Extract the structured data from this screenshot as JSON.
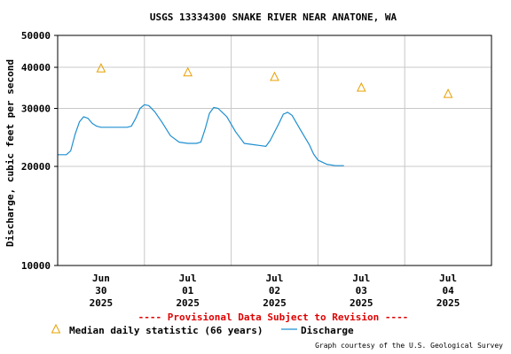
{
  "chart_data": {
    "type": "line",
    "title": "USGS 13334300 SNAKE RIVER NEAR ANATONE, WA",
    "ylabel": "Discharge, cubic feet per second",
    "xlabel": "",
    "y_scale": "log",
    "ylim": [
      10000,
      50000
    ],
    "y_ticks": [
      {
        "value": 10000,
        "label": "10000"
      },
      {
        "value": 20000,
        "label": "20000"
      },
      {
        "value": 30000,
        "label": "30000"
      },
      {
        "value": 40000,
        "label": "40000"
      },
      {
        "value": 50000,
        "label": "50000"
      }
    ],
    "x_range_days": [
      -0.5,
      4.5
    ],
    "x_ticks": [
      {
        "day": 0,
        "lines": [
          "Jun",
          "30",
          "2025"
        ]
      },
      {
        "day": 1,
        "lines": [
          "Jul",
          "01",
          "2025"
        ]
      },
      {
        "day": 2,
        "lines": [
          "Jul",
          "02",
          "2025"
        ]
      },
      {
        "day": 3,
        "lines": [
          "Jul",
          "03",
          "2025"
        ]
      },
      {
        "day": 4,
        "lines": [
          "Jul",
          "04",
          "2025"
        ]
      }
    ],
    "grid": true,
    "series": [
      {
        "name": "Discharge",
        "color": "#1f8fd0",
        "points": [
          [
            -0.5,
            21700
          ],
          [
            -0.4,
            21700
          ],
          [
            -0.35,
            22300
          ],
          [
            -0.3,
            25000
          ],
          [
            -0.25,
            27300
          ],
          [
            -0.2,
            28300
          ],
          [
            -0.15,
            28000
          ],
          [
            -0.1,
            27000
          ],
          [
            -0.05,
            26500
          ],
          [
            0.0,
            26300
          ],
          [
            0.2,
            26300
          ],
          [
            0.3,
            26300
          ],
          [
            0.35,
            26500
          ],
          [
            0.4,
            28000
          ],
          [
            0.45,
            30000
          ],
          [
            0.5,
            30800
          ],
          [
            0.55,
            30600
          ],
          [
            0.62,
            29300
          ],
          [
            0.7,
            27300
          ],
          [
            0.8,
            24800
          ],
          [
            0.9,
            23700
          ],
          [
            1.0,
            23500
          ],
          [
            1.1,
            23500
          ],
          [
            1.15,
            23700
          ],
          [
            1.2,
            26000
          ],
          [
            1.25,
            29000
          ],
          [
            1.3,
            30200
          ],
          [
            1.35,
            30000
          ],
          [
            1.45,
            28300
          ],
          [
            1.55,
            25500
          ],
          [
            1.65,
            23500
          ],
          [
            1.75,
            23300
          ],
          [
            1.85,
            23100
          ],
          [
            1.9,
            23000
          ],
          [
            1.95,
            24000
          ],
          [
            2.05,
            27000
          ],
          [
            2.1,
            28800
          ],
          [
            2.15,
            29200
          ],
          [
            2.2,
            28600
          ],
          [
            2.3,
            25800
          ],
          [
            2.4,
            23300
          ],
          [
            2.45,
            21800
          ],
          [
            2.5,
            20900
          ],
          [
            2.6,
            20300
          ],
          [
            2.7,
            20100
          ],
          [
            2.8,
            20100
          ]
        ]
      },
      {
        "name": "Median daily statistic (66 years)",
        "color": "#e8a000",
        "marker": "triangle",
        "points": [
          [
            0,
            39700
          ],
          [
            1,
            38600
          ],
          [
            2,
            37400
          ],
          [
            3,
            34700
          ],
          [
            4,
            33200
          ]
        ]
      }
    ]
  },
  "provisional_note": "---- Provisional Data Subject to Revision ----",
  "legend": {
    "median_label": "Median daily statistic (66 years)",
    "discharge_label": "Discharge"
  },
  "credit": "Graph courtesy of the U.S. Geological Survey",
  "colors": {
    "grid": "#c8c8c8",
    "axis": "#000000",
    "warning": "#e00000"
  }
}
